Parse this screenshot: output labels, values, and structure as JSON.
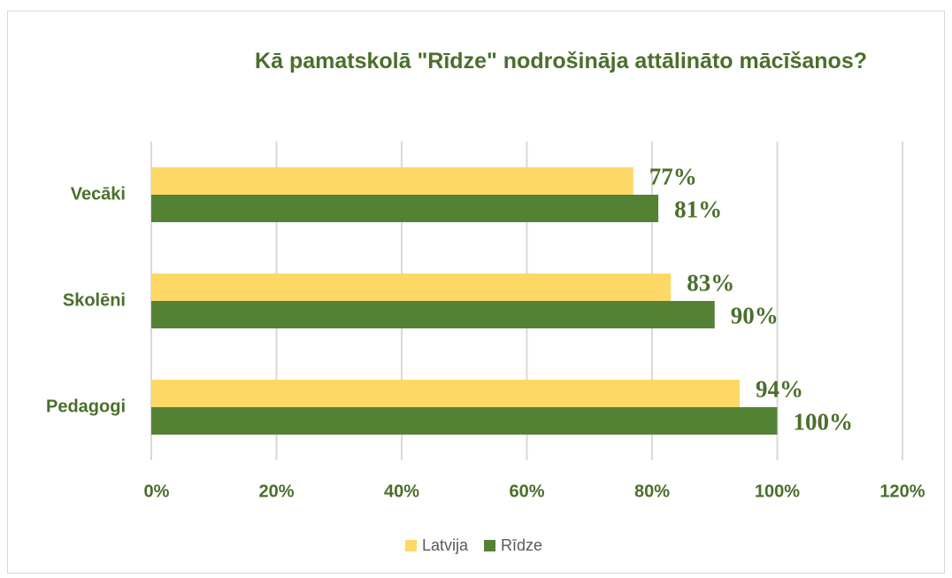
{
  "chart_data": {
    "type": "bar",
    "orientation": "horizontal",
    "title": "Kā pamatskolā \"Rīdze\" nodrošināja attālināto mācīšanos?",
    "categories": [
      "Vecāki",
      "Skolēni",
      "Pedagogi"
    ],
    "series": [
      {
        "name": "Latvija",
        "color": "#fdd867",
        "values": [
          77,
          83,
          94
        ],
        "value_labels": [
          "77%",
          "83%",
          "94%"
        ]
      },
      {
        "name": "Rīdze",
        "color": "#548235",
        "values": [
          81,
          90,
          100
        ],
        "value_labels": [
          "81%",
          "90%",
          "100%"
        ]
      }
    ],
    "xlim": [
      0,
      120
    ],
    "xticks": [
      {
        "value": 0,
        "label": "0%"
      },
      {
        "value": 20,
        "label": "20%"
      },
      {
        "value": 40,
        "label": "40%"
      },
      {
        "value": 60,
        "label": "60%"
      },
      {
        "value": 80,
        "label": "80%"
      },
      {
        "value": 100,
        "label": "100%"
      },
      {
        "value": 120,
        "label": "120%"
      }
    ],
    "grid": true,
    "legend": "bottom"
  }
}
